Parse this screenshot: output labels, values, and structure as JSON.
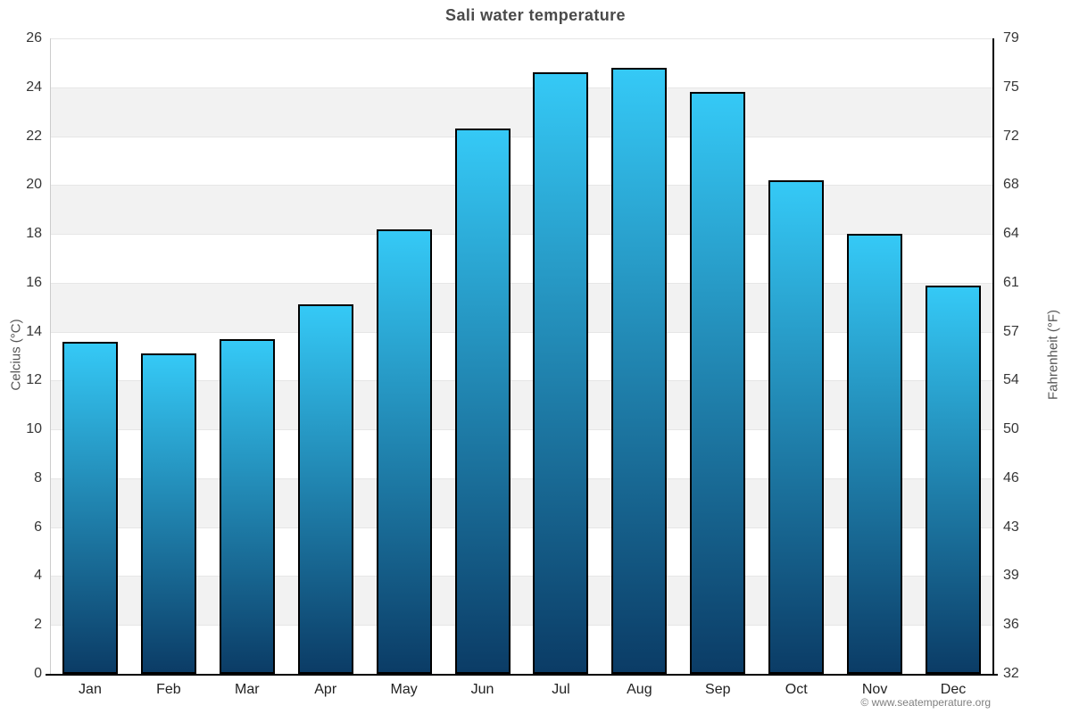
{
  "title": "Sali water temperature",
  "copyright": "© www.seatemperature.org",
  "axes": {
    "left_label": "Celcius (°C)",
    "right_label": "Fahrenheit (°F)"
  },
  "colors": {
    "bar_gradient_top": "#35c9f6",
    "bar_gradient_bottom": "#0b3c66",
    "bar_border": "#000000",
    "band_gray": "#f2f2f2",
    "band_white": "#ffffff",
    "gridline": "#e6e6e6",
    "left_axis_line": "#cccccc",
    "bottom_axis_line": "#000000",
    "title_text": "#4a4a4a",
    "tick_text": "#373737",
    "copyright_text": "#808080"
  },
  "chart_data": {
    "type": "bar",
    "title": "Sali water temperature",
    "categories": [
      "Jan",
      "Feb",
      "Mar",
      "Apr",
      "May",
      "Jun",
      "Jul",
      "Aug",
      "Sep",
      "Oct",
      "Nov",
      "Dec"
    ],
    "series": [
      {
        "name": "Water temperature",
        "unit": "°C",
        "values": [
          13.6,
          13.1,
          13.7,
          15.1,
          18.2,
          22.3,
          24.6,
          24.8,
          23.8,
          20.2,
          18.0,
          15.9
        ]
      }
    ],
    "xlabel": "",
    "ylabel_left": "Celcius (°C)",
    "ylabel_right": "Fahrenheit (°F)",
    "ylim_celsius": [
      0,
      26
    ],
    "celsius_tick_step": 2,
    "celsius_ticks": [
      0,
      2,
      4,
      6,
      8,
      10,
      12,
      14,
      16,
      18,
      20,
      22,
      24,
      26
    ],
    "fahrenheit_ticks": [
      32,
      36,
      39,
      43,
      46,
      50,
      54,
      57,
      61,
      64,
      68,
      72,
      75,
      79
    ],
    "grid": "horizontal-bands",
    "legend": "none",
    "bar_style": "vertical gradient cyan to dark navy with black outline"
  }
}
